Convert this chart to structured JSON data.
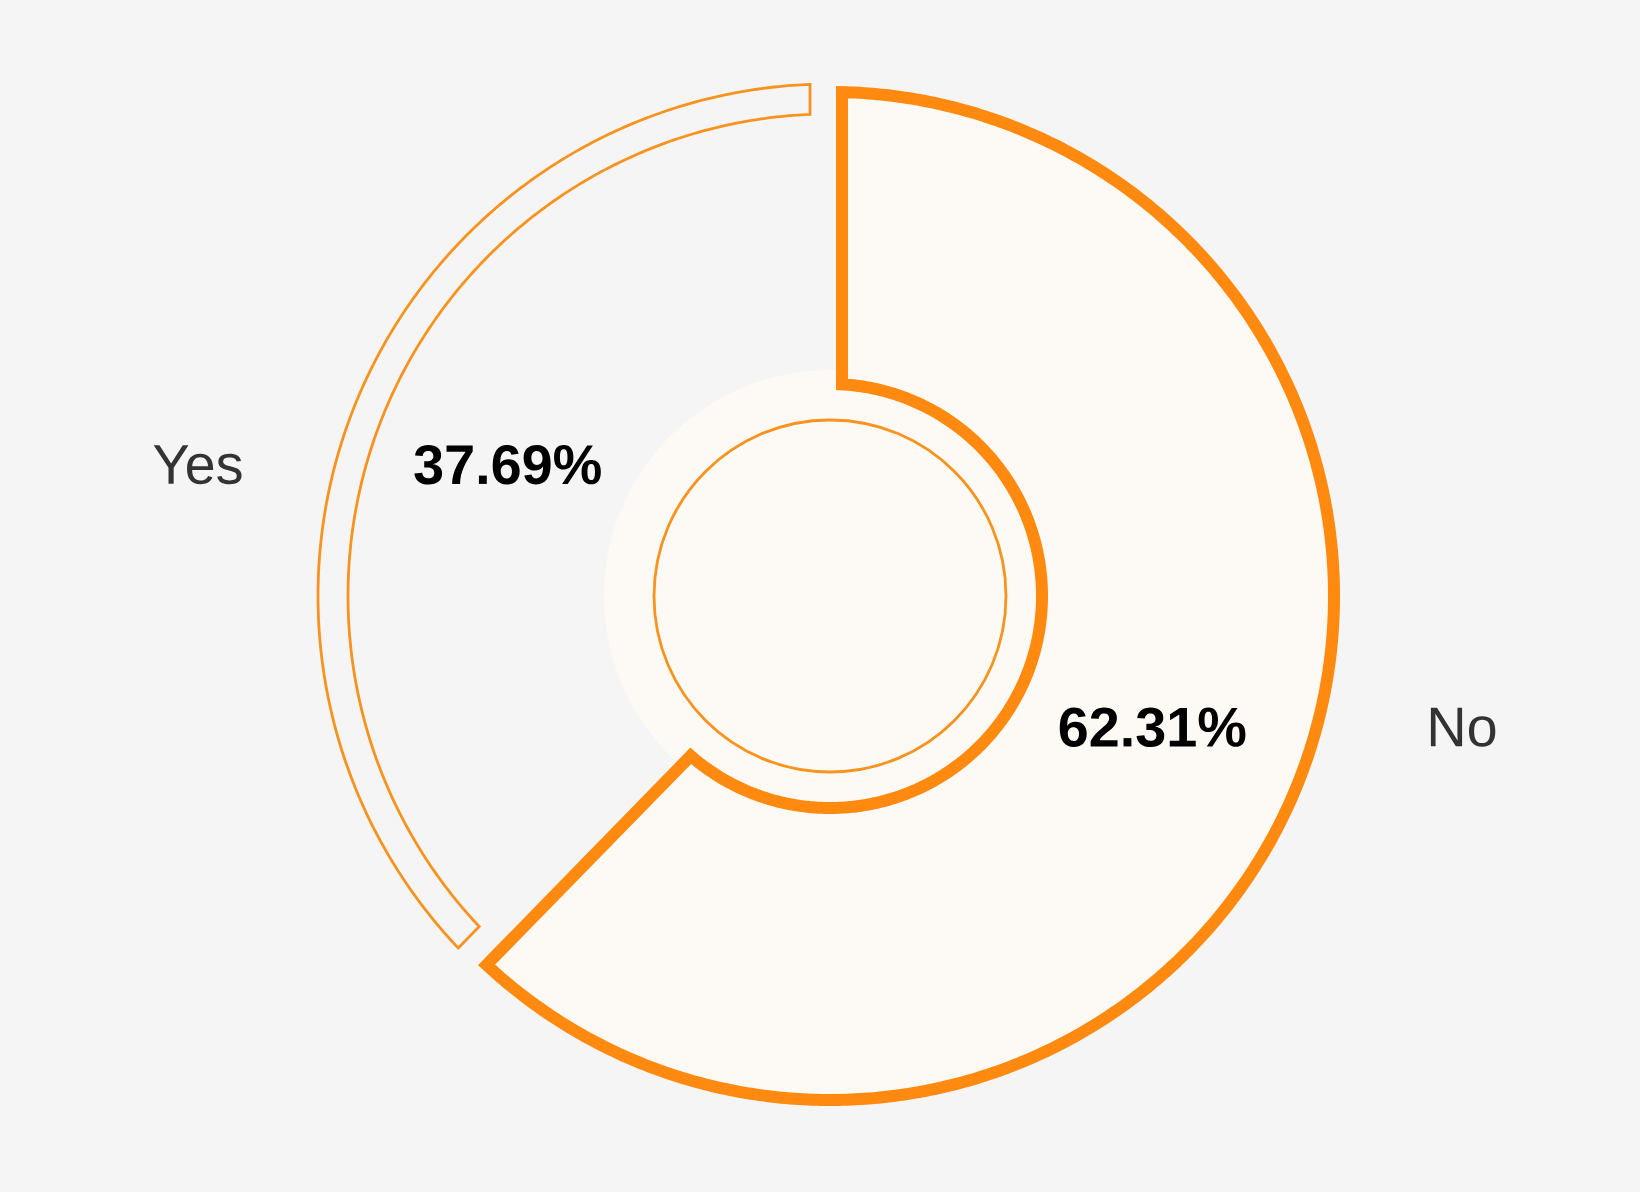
{
  "chart_data": {
    "type": "donut",
    "categories": [
      "Yes",
      "No"
    ],
    "values": [
      37.69,
      62.31
    ],
    "colors": [
      "#f5f5f5",
      "#fdf9f4"
    ],
    "value_labels": [
      "37.69%",
      "62.31%"
    ]
  }
}
